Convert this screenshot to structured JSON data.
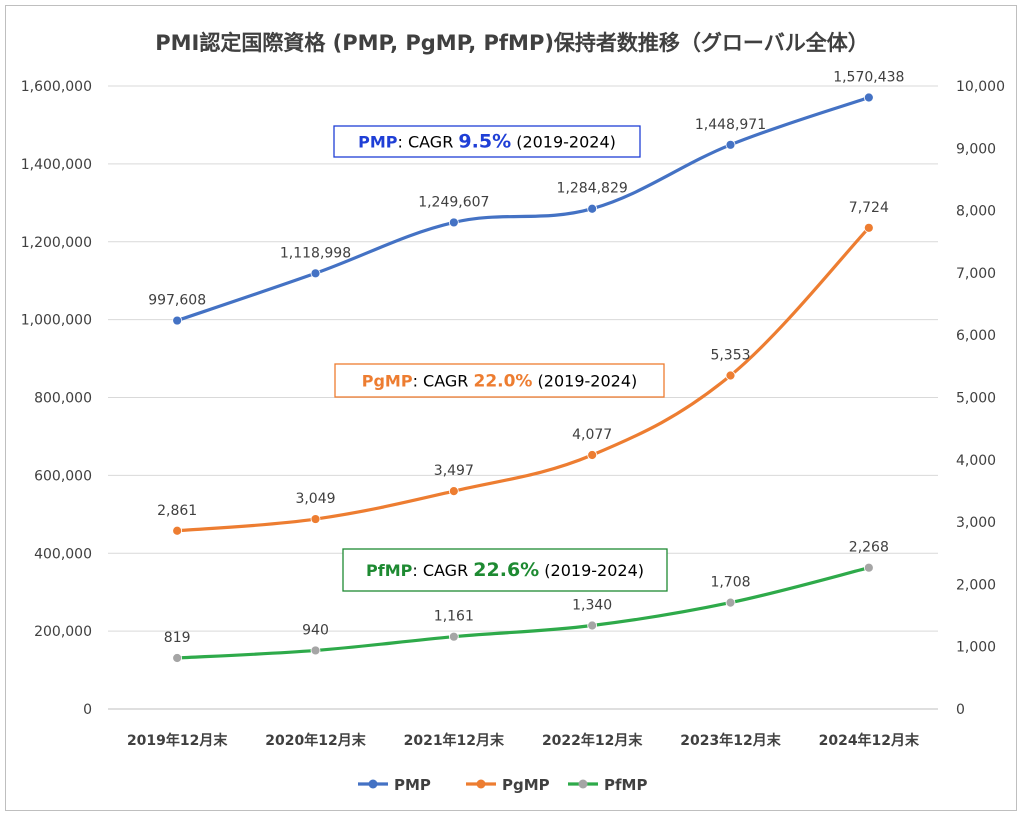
{
  "chart_data": {
    "type": "line",
    "title": "PMI認定国際資格 (PMP, PgMP, PfMP)保持者数推移（グローバル全体）",
    "categories": [
      "2019年12月末",
      "2020年12月末",
      "2021年12月末",
      "2022年12月末",
      "2023年12月末",
      "2024年12月末"
    ],
    "y_left": {
      "min": 0,
      "max": 1600000,
      "step": 200000,
      "ticks": [
        "0",
        "200,000",
        "400,000",
        "600,000",
        "800,000",
        "1,000,000",
        "1,200,000",
        "1,400,000",
        "1,600,000"
      ]
    },
    "y_right": {
      "min": 0,
      "max": 10000,
      "step": 1000,
      "ticks": [
        "0",
        "1,000",
        "2,000",
        "3,000",
        "4,000",
        "5,000",
        "6,000",
        "7,000",
        "8,000",
        "9,000",
        "10,000"
      ]
    },
    "grid": true,
    "legend_position": "bottom",
    "series": [
      {
        "name": "PMP",
        "axis": "left",
        "color": "#4472C4",
        "marker_color": "#4472C4",
        "values": [
          997608,
          1118998,
          1249607,
          1284829,
          1448971,
          1570438
        ],
        "labels": [
          "997,608",
          "1,118,998",
          "1,249,607",
          "1,284,829",
          "1,448,971",
          "1,570,438"
        ]
      },
      {
        "name": "PgMP",
        "axis": "right",
        "color": "#ED7D31",
        "marker_color": "#ED7D31",
        "values": [
          2861,
          3049,
          3497,
          4077,
          5353,
          7724
        ],
        "labels": [
          "2,861",
          "3,049",
          "3,497",
          "4,077",
          "5,353",
          "7,724"
        ]
      },
      {
        "name": "PfMP",
        "axis": "right",
        "color": "#2EAA4A",
        "marker_color": "#A5A5A5",
        "values": [
          819,
          940,
          1161,
          1340,
          1708,
          2268
        ],
        "labels": [
          "819",
          "940",
          "1,161",
          "1,340",
          "1,708",
          "2,268"
        ]
      }
    ],
    "annotations": [
      {
        "series": "PMP",
        "name": "PMP",
        "text_mid": ": CAGR ",
        "pct": "9.5%",
        "period": " (2019-2024)",
        "box_color": "#1f3fd6",
        "name_color": "#1f3fd6",
        "pct_color": "#1f3fd6"
      },
      {
        "series": "PgMP",
        "name": "PgMP",
        "text_mid": ": CAGR ",
        "pct": "22.0%",
        "period": " (2019-2024)",
        "box_color": "#ED7D31",
        "name_color": "#ED7D31",
        "pct_color": "#ED7D31"
      },
      {
        "series": "PfMP",
        "name": "PfMP",
        "text_mid": ": CAGR ",
        "pct": "22.6%",
        "period": " (2019-2024)",
        "box_color": "#1e8a32",
        "name_color": "#1e8a32",
        "pct_color": "#1e8a32"
      }
    ]
  }
}
